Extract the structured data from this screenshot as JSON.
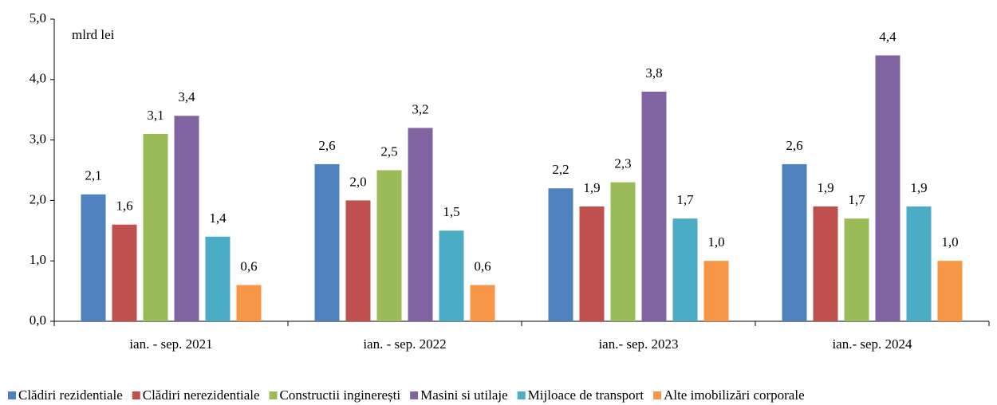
{
  "chart_data": {
    "type": "bar",
    "unit": "mlrd lei",
    "categories": [
      "ian. - sep. 2021",
      "ian. - sep. 2022",
      "ian.- sep. 2023",
      "ian.- sep. 2024"
    ],
    "series": [
      {
        "name": "Clădiri rezidentiale",
        "color": "#4f81bd",
        "values": [
          2.1,
          2.6,
          2.2,
          2.6
        ],
        "value_labels": [
          "2,1",
          "2,6",
          "2,2",
          "2,6"
        ]
      },
      {
        "name": "Clădiri nerezidentiale",
        "color": "#c0504d",
        "values": [
          1.6,
          2.0,
          1.9,
          1.9
        ],
        "value_labels": [
          "1,6",
          "2,0",
          "1,9",
          "1,9"
        ]
      },
      {
        "name": "Constructii inginerești",
        "color": "#9bbb59",
        "values": [
          3.1,
          2.5,
          2.3,
          1.7
        ],
        "value_labels": [
          "3,1",
          "2,5",
          "2,3",
          "1,7"
        ]
      },
      {
        "name": "Masini si utilaje",
        "color": "#8064a2",
        "values": [
          3.4,
          3.2,
          3.8,
          4.4
        ],
        "value_labels": [
          "3,4",
          "3,2",
          "3,8",
          "4,4"
        ]
      },
      {
        "name": "Mijloace de transport",
        "color": "#4bacc6",
        "values": [
          1.4,
          1.5,
          1.7,
          1.9
        ],
        "value_labels": [
          "1,4",
          "1,5",
          "1,7",
          "1,9"
        ]
      },
      {
        "name": "Alte imobilizări corporale",
        "color": "#f79646",
        "values": [
          0.6,
          0.6,
          1.0,
          1.0
        ],
        "value_labels": [
          "0,6",
          "0,6",
          "1,0",
          "1,0"
        ]
      }
    ],
    "ylim": [
      0,
      5
    ],
    "yticks": [
      {
        "value": 0,
        "label": "0,0"
      },
      {
        "value": 1,
        "label": "1,0"
      },
      {
        "value": 2,
        "label": "2,0"
      },
      {
        "value": 3,
        "label": "3,0"
      },
      {
        "value": 4,
        "label": "4,0"
      },
      {
        "value": 5,
        "label": "5,0"
      }
    ],
    "legend": "bottom"
  }
}
